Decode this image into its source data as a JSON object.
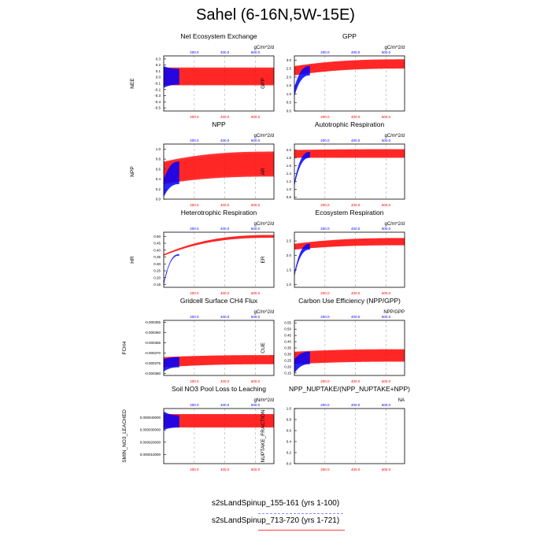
{
  "title": "Sahel (6-16N,5W-15E)",
  "colors": {
    "run1": "#0000ff",
    "run2": "#ff0000",
    "run2_light": "#ff9a9a",
    "axis_top": "#0000ff",
    "axis_bottom": "#ff0000"
  },
  "legend": [
    {
      "label": "s2sLandSpinup_155-161 (yrs 1-100)",
      "color": "#8c8cff",
      "dash": true
    },
    {
      "label": "s2sLandSpinup_713-720 (yrs 1-721)",
      "color": "#ff4040",
      "dash": false
    }
  ],
  "chart_data": [
    {
      "type": "line",
      "title": "Net Ecosystem Exchange",
      "ylabel": "NEE",
      "units": "gC/m^2/d",
      "yticks": [
        "0.3",
        "0.2",
        "0.1",
        "0.0",
        "-0.1",
        "-0.2",
        "-0.3",
        "-0.4",
        "-0.5"
      ],
      "ylim": [
        -0.55,
        0.35
      ],
      "xticks": [
        "200.0",
        "400.0",
        "600.0"
      ],
      "xlim": [
        0,
        721
      ],
      "run1": {
        "years": 100,
        "low_start": -0.17,
        "low_end": -0.12,
        "high_start": 0.18,
        "high_end": 0.14
      },
      "run2": {
        "years": 721,
        "low_start": -0.13,
        "low_end": -0.13,
        "high_start": 0.16,
        "high_end": 0.16
      }
    },
    {
      "type": "line",
      "title": "GPP",
      "ylabel": "GPP",
      "units": "gC/m^2/d",
      "yticks": [
        "3.0",
        "2.5",
        "2.0",
        "1.5",
        "1.0",
        "0.5",
        "0.0"
      ],
      "ylim": [
        0,
        3.25
      ],
      "xticks": [
        "200.0",
        "400.0",
        "600.0"
      ],
      "xlim": [
        0,
        721
      ],
      "run1": {
        "years": 100,
        "low_start": 0.9,
        "low_end": 2.1,
        "high_start": 1.4,
        "high_end": 2.65
      },
      "run2": {
        "years": 721,
        "low_start": 2.1,
        "low_end": 2.5,
        "high_start": 2.65,
        "high_end": 3.05
      }
    },
    {
      "type": "line",
      "title": "NPP",
      "ylabel": "NPP",
      "units": "gC/m^2/d",
      "yticks": [
        "1.0",
        "0.8",
        "0.6",
        "0.4",
        "0.2",
        "0.0"
      ],
      "ylim": [
        0,
        1.1
      ],
      "xticks": [
        "200.0",
        "400.0",
        "600.0"
      ],
      "xlim": [
        0,
        721
      ],
      "run1": {
        "years": 100,
        "low_start": 0.05,
        "low_end": 0.3,
        "high_start": 0.4,
        "high_end": 0.75
      },
      "run2": {
        "years": 721,
        "low_start": 0.3,
        "low_end": 0.45,
        "high_start": 0.75,
        "high_end": 0.95
      }
    },
    {
      "type": "line",
      "title": "Autotrophic Respiration",
      "ylabel": "AR",
      "units": "gC/m^2/d",
      "yticks": [
        "2.0",
        "1.8",
        "1.6",
        "1.4",
        "1.2",
        "1.0",
        "0.8"
      ],
      "ylim": [
        0.75,
        2.15
      ],
      "xticks": [
        "200.0",
        "400.0",
        "600.0"
      ],
      "xlim": [
        0,
        721
      ],
      "run1": {
        "years": 100,
        "low_start": 1.1,
        "low_end": 1.8,
        "high_start": 1.2,
        "high_end": 1.95
      },
      "run2": {
        "years": 721,
        "low_start": 1.8,
        "low_end": 1.8,
        "high_start": 2.0,
        "high_end": 2.02
      }
    },
    {
      "type": "line",
      "title": "Heterotrophic Respiration",
      "ylabel": "HR",
      "units": "gC/m^2/d",
      "yticks": [
        "0.50",
        "0.45",
        "0.40",
        "0.35",
        "0.30",
        "0.25",
        "0.20",
        "0.15"
      ],
      "ylim": [
        0.13,
        0.53
      ],
      "xticks": [
        "200.0",
        "400.0",
        "600.0"
      ],
      "xlim": [
        0,
        721
      ],
      "run1": {
        "years": 100,
        "low_start": 0.15,
        "low_end": 0.36,
        "high_start": 0.16,
        "high_end": 0.37
      },
      "run2": {
        "years": 721,
        "low_start": 0.36,
        "low_end": 0.49,
        "high_start": 0.37,
        "high_end": 0.51
      }
    },
    {
      "type": "line",
      "title": "Ecosystem Respiration",
      "ylabel": "ER",
      "units": "gC/m^2/d",
      "yticks": [
        "2.5",
        "2.0",
        "1.5",
        "1.0"
      ],
      "ylim": [
        0.9,
        2.8
      ],
      "xticks": [
        "200.0",
        "400.0",
        "600.0"
      ],
      "xlim": [
        0,
        721
      ],
      "run1": {
        "years": 100,
        "low_start": 1.3,
        "low_end": 2.2,
        "high_start": 1.4,
        "high_end": 2.4
      },
      "run2": {
        "years": 721,
        "low_start": 2.2,
        "low_end": 2.35,
        "high_start": 2.4,
        "high_end": 2.6
      }
    },
    {
      "type": "line",
      "title": "Gridcell Surface CH4 Flux",
      "ylabel": "FCH4",
      "units": "gC/m^2/d",
      "yticks": [
        "-0.000355",
        "-0.000360",
        "-0.000365",
        "-0.000370",
        "-0.000375",
        "-0.000380"
      ],
      "ylim": [
        -0.000381,
        -0.000354
      ],
      "xticks": [
        "200.0",
        "400.0",
        "600.0"
      ],
      "xlim": [
        0,
        721
      ],
      "run1": {
        "years": 100,
        "low_start": -0.000379,
        "low_end": -0.000377,
        "high_start": -0.000373,
        "high_end": -0.000372
      },
      "run2": {
        "years": 721,
        "low_start": -0.000377,
        "low_end": -0.0003755,
        "high_start": -0.000372,
        "high_end": -0.000371
      }
    },
    {
      "type": "line",
      "title": "Carbon Use Efficiency (NPP/GPP)",
      "ylabel": "CUE",
      "units": "NPP/GPP",
      "yticks": [
        "0.55",
        "0.50",
        "0.45",
        "0.40",
        "0.35",
        "0.30",
        "0.25",
        "0.20",
        "0.15"
      ],
      "ylim": [
        0.13,
        0.57
      ],
      "xticks": [
        "200.0",
        "400.0",
        "600.0"
      ],
      "xlim": [
        0,
        721
      ],
      "run1": {
        "years": 100,
        "low_start": 0.15,
        "low_end": 0.22,
        "high_start": 0.26,
        "high_end": 0.32
      },
      "run2": {
        "years": 721,
        "low_start": 0.22,
        "low_end": 0.24,
        "high_start": 0.32,
        "high_end": 0.34
      }
    },
    {
      "type": "line",
      "title": "Soil NO3 Pool Loss to Leaching",
      "ylabel": "SMIN_NO3_LEACHED",
      "units": "gN/m^2/d",
      "yticks": [
        "0.000040000",
        "0.000030000",
        "0.000020000",
        "0.000010000"
      ],
      "ylim": [
        2.5e-06,
        4.75e-05
      ],
      "xticks": [
        "200.0",
        "400.0",
        "600.0"
      ],
      "xlim": [
        0,
        721
      ],
      "run1": {
        "years": 100,
        "low_start": 3e-05,
        "low_end": 3.2e-05,
        "high_start": 4.5e-05,
        "high_end": 4.2e-05
      },
      "run2": {
        "years": 721,
        "low_start": 3.2e-05,
        "low_end": 3.2e-05,
        "high_start": 4.3e-05,
        "high_end": 4.3e-05
      }
    },
    {
      "type": "line",
      "title": "NPP_NUPTAKE/(NPP_NUPTAKE+NPP)",
      "ylabel": "NUPTAKE_FRACTION",
      "units": "NA",
      "yticks": [
        "1.0",
        "0.8",
        "0.6",
        "0.4",
        "0.2",
        "0.0"
      ],
      "ylim": [
        0,
        1.0
      ],
      "xticks": [
        "200.0",
        "400.0",
        "600.0"
      ],
      "xlim": [
        0,
        721
      ],
      "run1": null,
      "run2": null
    }
  ]
}
